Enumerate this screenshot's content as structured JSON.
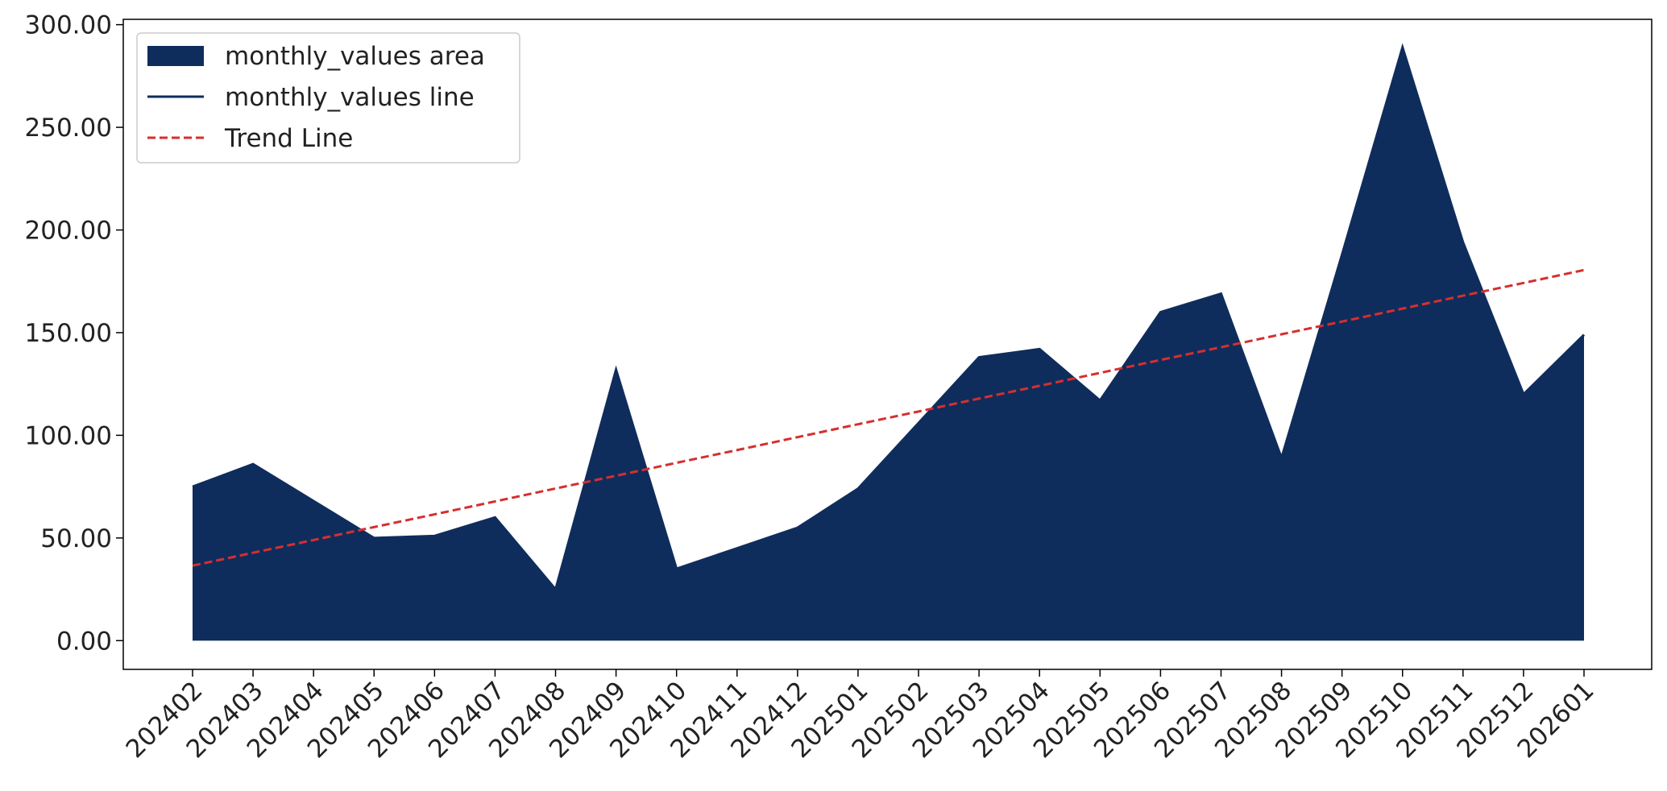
{
  "chart_data": {
    "type": "area",
    "categories": [
      "202402",
      "202403",
      "202404",
      "202405",
      "202406",
      "202407",
      "202408",
      "202409",
      "202410",
      "202411",
      "202412",
      "202501",
      "202502",
      "202503",
      "202504",
      "202505",
      "202506",
      "202507",
      "202508",
      "202509",
      "202510",
      "202511",
      "202512",
      "202601"
    ],
    "series": [
      {
        "name": "monthly_values area",
        "color": "#0f2d5c",
        "kind": "area",
        "values": [
          75,
          86,
          68,
          50,
          51,
          60,
          25,
          132,
          35,
          45,
          55,
          74,
          106,
          138,
          142,
          117,
          160,
          169,
          89,
          188,
          289,
          194,
          120,
          149
        ]
      },
      {
        "name": "monthly_values line",
        "color": "#0f2d5c",
        "kind": "line",
        "values": [
          75,
          86,
          68,
          50,
          51,
          60,
          25,
          132,
          35,
          45,
          55,
          74,
          106,
          138,
          142,
          117,
          160,
          169,
          89,
          188,
          289,
          194,
          120,
          149
        ]
      },
      {
        "name": "Trend Line",
        "color": "#d62f2f",
        "kind": "dashed",
        "values": [
          36.5,
          42.8,
          49.0,
          55.3,
          61.5,
          67.8,
          74.1,
          80.3,
          86.6,
          92.8,
          99.1,
          105.4,
          111.6,
          117.9,
          124.1,
          130.4,
          136.7,
          142.9,
          149.2,
          155.4,
          161.7,
          168.0,
          174.2,
          180.5
        ]
      }
    ],
    "ylim": [
      -14,
      302.6
    ],
    "yticks": [
      {
        "value": 0,
        "label": "0.00"
      },
      {
        "value": 50,
        "label": "50.00"
      },
      {
        "value": 100,
        "label": "100.00"
      },
      {
        "value": 150,
        "label": "150.00"
      },
      {
        "value": 200,
        "label": "200.00"
      },
      {
        "value": 250,
        "label": "250.00"
      },
      {
        "value": 300,
        "label": "300.00"
      }
    ],
    "legend": "upper left",
    "grid": false
  }
}
